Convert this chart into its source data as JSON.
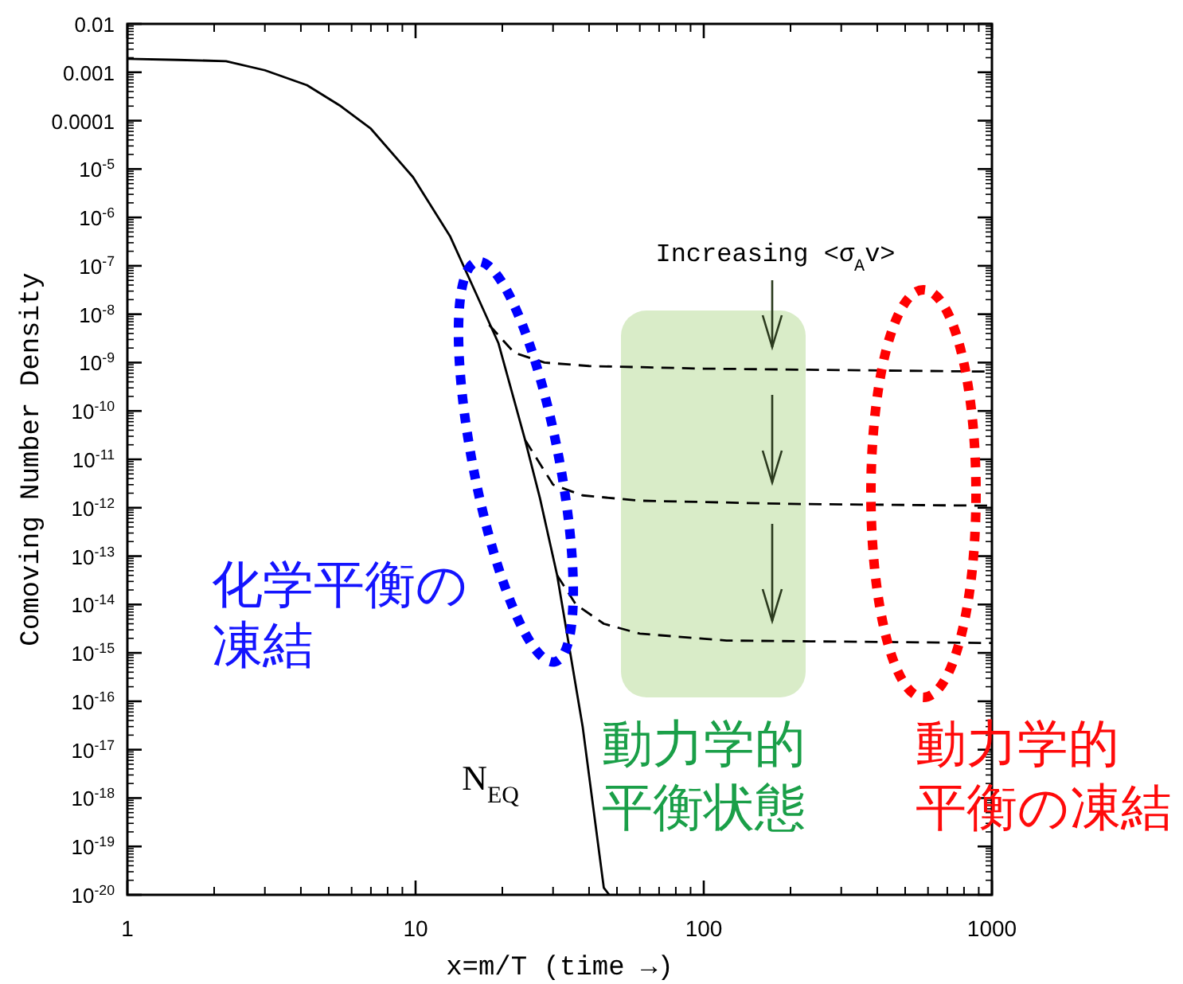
{
  "chart_data": {
    "type": "line",
    "xlabel": "x=m/T (time →)",
    "ylabel": "Comoving Number Density",
    "log": "xy",
    "xlim": [
      1,
      1000
    ],
    "ylim": [
      1e-20,
      0.01
    ],
    "xticks": [
      1,
      10,
      100,
      1000
    ],
    "yticks": [
      {
        "value": 0.01,
        "label": "0.01"
      },
      {
        "value": 0.001,
        "label": "0.001"
      },
      {
        "value": 0.0001,
        "label": "0.0001"
      },
      {
        "value": 1e-05,
        "label": "10$^{-5}$"
      },
      {
        "value": 1e-06,
        "label": "10$^{-6}$"
      },
      {
        "value": 1e-07,
        "label": "10$^{-7}$"
      },
      {
        "value": 1e-08,
        "label": "10$^{-8}$"
      },
      {
        "value": 1e-09,
        "label": "10$^{-9}$"
      },
      {
        "value": 1e-10,
        "label": "10$^{-10}$"
      },
      {
        "value": 1e-11,
        "label": "10$^{-11}$"
      },
      {
        "value": 1e-12,
        "label": "10$^{-12}$"
      },
      {
        "value": 1e-13,
        "label": "10$^{-13}$"
      },
      {
        "value": 1e-14,
        "label": "10$^{-14}$"
      },
      {
        "value": 1e-15,
        "label": "10$^{-15}$"
      },
      {
        "value": 1e-16,
        "label": "10$^{-16}$"
      },
      {
        "value": 1e-17,
        "label": "10$^{-17}$"
      },
      {
        "value": 1e-18,
        "label": "10$^{-18}$"
      },
      {
        "value": 1e-19,
        "label": "10$^{-19}$"
      },
      {
        "value": 1e-20,
        "label": "10$^{-20}$"
      }
    ],
    "series": [
      {
        "name": "N$_{EQ}$",
        "color": "#000000",
        "line_style": "solid",
        "x": [
          1,
          1.5,
          2.2,
          3,
          4.2,
          5.5,
          7,
          9.8,
          13.2,
          16.3,
          19.4,
          24,
          27,
          31,
          38,
          45,
          47
        ],
        "values": [
          0.0019,
          0.0018,
          0.0017,
          0.0011,
          0.00054,
          0.0002,
          6.8e-05,
          6.8e-06,
          4e-07,
          2.5e-08,
          2.5e-09,
          2.5e-11,
          1.6e-12,
          4e-14,
          3e-17,
          1.4e-20,
          1e-20
        ]
      },
      {
        "color": "#000000",
        "line_style": "dashed",
        "x": [
          18,
          22,
          28,
          40,
          100,
          300,
          1000
        ],
        "values": [
          6e-09,
          1.6e-09,
          1e-09,
          8.5e-10,
          7.5e-10,
          7e-10,
          6.5e-10
        ]
      },
      {
        "color": "#000000",
        "line_style": "dashed",
        "x": [
          24,
          30,
          38,
          60,
          200,
          1000
        ],
        "values": [
          2.5e-11,
          3e-12,
          1.8e-12,
          1.4e-12,
          1.2e-12,
          1.1e-12
        ]
      },
      {
        "color": "#000000",
        "line_style": "dashed",
        "x": [
          31,
          36,
          45,
          60,
          120,
          1000
        ],
        "values": [
          4e-14,
          1e-14,
          4e-15,
          2.5e-15,
          1.8e-15,
          1.6e-15
        ]
      }
    ],
    "annotations": [
      "Increasing <σ$_{A}$v>",
      "化学平衡の凍結",
      "動力学的平衡状態",
      "動力学的平衡の凍結"
    ]
  }
}
